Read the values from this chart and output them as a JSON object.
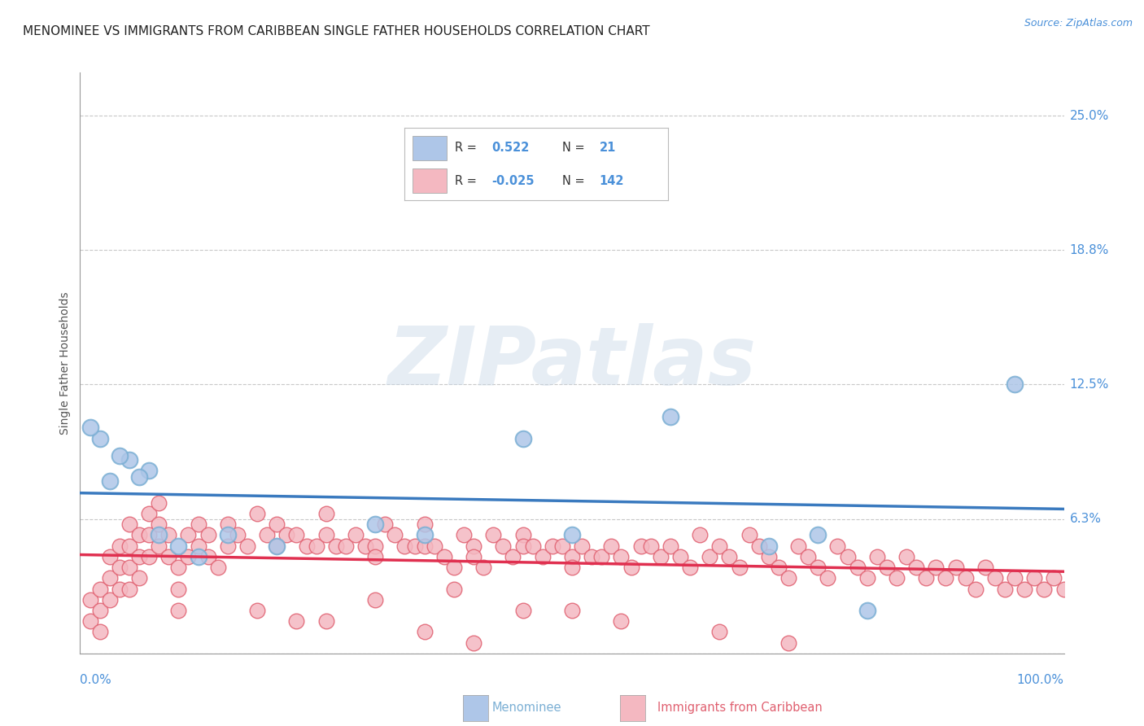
{
  "title": "MENOMINEE VS IMMIGRANTS FROM CARIBBEAN SINGLE FATHER HOUSEHOLDS CORRELATION CHART",
  "source": "Source: ZipAtlas.com",
  "ylabel": "Single Father Households",
  "yticks": [
    0.0,
    6.25,
    12.5,
    18.75,
    25.0
  ],
  "ytick_labels": [
    "",
    "6.3%",
    "12.5%",
    "18.8%",
    "25.0%"
  ],
  "xlim": [
    0.0,
    100.0
  ],
  "ylim": [
    0.0,
    27.0
  ],
  "watermark_text": "ZIPatlas",
  "legend": {
    "blue_label_r": "R =",
    "blue_label_rv": "0.522",
    "blue_label_n": "N =",
    "blue_label_nv": "21",
    "pink_label_r": "R =",
    "pink_label_rv": "-0.025",
    "pink_label_n": "N =",
    "pink_label_nv": "142",
    "blue_color": "#aec6e8",
    "pink_color": "#f4b8c1"
  },
  "menominee": {
    "dot_color": "#aec6e8",
    "dot_edge_color": "#7bafd4",
    "trend_color": "#3a7abf",
    "x": [
      2,
      3,
      5,
      7,
      8,
      10,
      12,
      15,
      20,
      30,
      35,
      45,
      50,
      60,
      70,
      75,
      80,
      95,
      1,
      4,
      6
    ],
    "y": [
      10.0,
      8.0,
      9.0,
      8.5,
      5.5,
      5.0,
      4.5,
      5.5,
      5.0,
      6.0,
      5.5,
      10.0,
      5.5,
      11.0,
      5.0,
      5.5,
      2.0,
      12.5,
      10.5,
      9.2,
      8.2
    ]
  },
  "caribbean": {
    "dot_color": "#f4b8c1",
    "dot_edge_color": "#e06070",
    "trend_color": "#e03050",
    "x": [
      1,
      1,
      2,
      2,
      2,
      3,
      3,
      3,
      4,
      4,
      4,
      5,
      5,
      5,
      5,
      6,
      6,
      6,
      7,
      7,
      7,
      8,
      8,
      8,
      9,
      9,
      10,
      10,
      10,
      11,
      11,
      12,
      12,
      13,
      13,
      14,
      15,
      15,
      16,
      17,
      18,
      19,
      20,
      20,
      21,
      22,
      23,
      24,
      25,
      25,
      26,
      27,
      28,
      29,
      30,
      30,
      31,
      32,
      33,
      34,
      35,
      35,
      36,
      37,
      38,
      39,
      40,
      40,
      41,
      42,
      43,
      44,
      45,
      45,
      46,
      47,
      48,
      49,
      50,
      50,
      51,
      52,
      53,
      54,
      55,
      56,
      57,
      58,
      59,
      60,
      61,
      62,
      63,
      64,
      65,
      66,
      67,
      68,
      69,
      70,
      71,
      72,
      73,
      74,
      75,
      76,
      77,
      78,
      79,
      80,
      81,
      82,
      83,
      84,
      85,
      86,
      87,
      88,
      89,
      90,
      91,
      92,
      93,
      94,
      95,
      96,
      97,
      98,
      99,
      100,
      40,
      50,
      55,
      25,
      30,
      45,
      38,
      65,
      72,
      35,
      22,
      18
    ],
    "y": [
      2.5,
      1.5,
      3.0,
      2.0,
      1.0,
      4.5,
      3.5,
      2.5,
      5.0,
      4.0,
      3.0,
      6.0,
      5.0,
      4.0,
      3.0,
      5.5,
      4.5,
      3.5,
      6.5,
      5.5,
      4.5,
      7.0,
      6.0,
      5.0,
      5.5,
      4.5,
      4.0,
      3.0,
      2.0,
      5.5,
      4.5,
      6.0,
      5.0,
      5.5,
      4.5,
      4.0,
      6.0,
      5.0,
      5.5,
      5.0,
      6.5,
      5.5,
      6.0,
      5.0,
      5.5,
      5.5,
      5.0,
      5.0,
      6.5,
      5.5,
      5.0,
      5.0,
      5.5,
      5.0,
      5.0,
      4.5,
      6.0,
      5.5,
      5.0,
      5.0,
      6.0,
      5.0,
      5.0,
      4.5,
      4.0,
      5.5,
      5.0,
      4.5,
      4.0,
      5.5,
      5.0,
      4.5,
      5.5,
      5.0,
      5.0,
      4.5,
      5.0,
      5.0,
      4.5,
      4.0,
      5.0,
      4.5,
      4.5,
      5.0,
      4.5,
      4.0,
      5.0,
      5.0,
      4.5,
      5.0,
      4.5,
      4.0,
      5.5,
      4.5,
      5.0,
      4.5,
      4.0,
      5.5,
      5.0,
      4.5,
      4.0,
      3.5,
      5.0,
      4.5,
      4.0,
      3.5,
      5.0,
      4.5,
      4.0,
      3.5,
      4.5,
      4.0,
      3.5,
      4.5,
      4.0,
      3.5,
      4.0,
      3.5,
      4.0,
      3.5,
      3.0,
      4.0,
      3.5,
      3.0,
      3.5,
      3.0,
      3.5,
      3.0,
      3.5,
      3.0,
      0.5,
      2.0,
      1.5,
      1.5,
      2.5,
      2.0,
      3.0,
      1.0,
      0.5,
      1.0,
      1.5,
      2.0
    ]
  },
  "background_color": "#ffffff",
  "grid_color": "#c8c8c8",
  "title_fontsize": 11,
  "axis_label_fontsize": 10,
  "tick_fontsize": 11,
  "tick_color": "#4a90d9",
  "bottom_legend_color": "#4a90d9"
}
